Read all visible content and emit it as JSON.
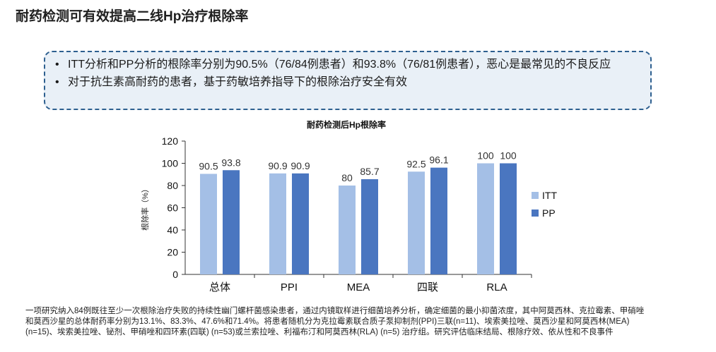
{
  "page": {
    "title": "耐药检测可有效提高二线Hp治疗根除率"
  },
  "summary": {
    "bullet_symbol": "•",
    "bullets": [
      "ITT分析和PP分析的根除率分别为90.5%（76/84例患者）和93.8%（76/81例患者），恶心是最常见的不良反应",
      "对于抗生素高耐药的患者，基于药敏培养指导下的根除治疗安全有效"
    ]
  },
  "chart_data": {
    "type": "bar",
    "title": "耐药检测后Hp根除率",
    "ylabel": "根除率（%）",
    "xlabel": "",
    "ylim": [
      0,
      120
    ],
    "yticks": [
      0,
      20,
      40,
      60,
      80,
      100,
      120
    ],
    "categories": [
      "总体",
      "PPI",
      "MEA",
      "四联",
      "RLA"
    ],
    "series": [
      {
        "name": "ITT",
        "values": [
          90.5,
          90.9,
          80,
          92.5,
          100
        ],
        "labels": [
          "90.5",
          "90.9",
          "80",
          "92.5",
          "100"
        ],
        "color": "#a4bfe6"
      },
      {
        "name": "PP",
        "values": [
          93.8,
          90.9,
          85.7,
          96.1,
          100
        ],
        "labels": [
          "93.8",
          "90.9",
          "85.7",
          "96.1",
          "100"
        ],
        "color": "#4a76c0"
      }
    ],
    "legend_position": "right",
    "grid": false
  },
  "footnote": {
    "lines": [
      "一项研究纳入84例既往至少一次根除治疗失败的持续性幽门螺杆菌感染患者，通过内镜取样进行细菌培养分析，确定细菌的最小抑菌浓度，其中阿莫西林、克拉霉素、甲硝唑",
      "和莫西沙星的总体耐药率分别为13.1%、83.3%、47.6%和71.4%。将患者随机分为克拉霉素联合质子泵抑制剂(PPI)三联(n=11)、埃索美拉唑、莫西沙星和阿莫西林(MEA)",
      "(n=15)、埃索美拉唑、铋剂、甲硝唑和四环素(四联) (n=53)或兰索拉唑、利福布汀和阿莫西林(RLA) (n=5) 治疗组。研究评估临床结局、根除疗效、依从性和不良事件"
    ]
  }
}
